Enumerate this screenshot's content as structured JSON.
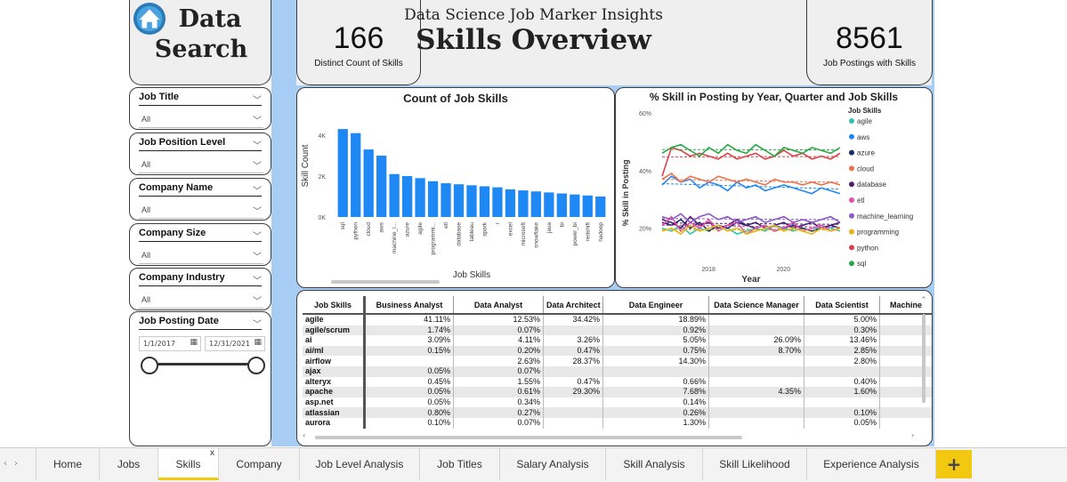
{
  "logo": {
    "line1": "Data",
    "line2": "Search",
    "icon": "home-icon"
  },
  "header": {
    "subtitle": "Data Science Job Marker Insights",
    "title": "Skills Overview"
  },
  "kpis": [
    {
      "value": "166",
      "label": "Distinct Count of Skills"
    },
    {
      "value": "8561",
      "label": "Job Postings with Skills"
    }
  ],
  "filters": [
    {
      "title": "Job Title",
      "value": "All"
    },
    {
      "title": "Job Position Level",
      "value": "All"
    },
    {
      "title": "Company Name",
      "value": "All"
    },
    {
      "title": "Company Size",
      "value": "All"
    },
    {
      "title": "Company Industry",
      "value": "All"
    }
  ],
  "date_filter": {
    "title": "Job Posting Date",
    "start": "1/1/2017",
    "end": "12/31/2021",
    "range": [
      0,
      1
    ]
  },
  "bar_panel_title": "Count of Job Skills",
  "line_panel_title": "% Skill in Posting by Year, Quarter and Job Skills",
  "chart_data": [
    {
      "type": "bar",
      "title": "Count of Job Skills",
      "xlabel": "Job Skills",
      "ylabel": "Skill Count",
      "ylim": [
        0,
        5000
      ],
      "yticks": [
        "0K",
        "2K",
        "4K"
      ],
      "categories": [
        "sql",
        "python",
        "cloud",
        "aws",
        "machine_l...",
        "azure",
        "agile",
        "programmi...",
        "etl",
        "database",
        "tableau",
        "spark",
        "r",
        "excel",
        "microsoft",
        "snowflake",
        "java",
        "bi",
        "power_bi",
        "redshift",
        "hadoop"
      ],
      "values": [
        4300,
        4100,
        3300,
        3000,
        2100,
        2000,
        1900,
        1750,
        1650,
        1600,
        1550,
        1500,
        1450,
        1350,
        1300,
        1250,
        1200,
        1150,
        1100,
        1050,
        1000
      ],
      "color": "#1e88f5"
    },
    {
      "type": "line",
      "title": "% Skill in Posting by Year, Quarter and Job Skills",
      "xlabel": "Year",
      "ylabel": "% Skill in Posting",
      "xticks": [
        "2018",
        "2020"
      ],
      "yticks": [
        "20%",
        "40%",
        "60%"
      ],
      "ylim": [
        10,
        60
      ],
      "legend_title": "Job Skills",
      "legend_position": "right",
      "x": [
        "2017Q1",
        "2017Q2",
        "2017Q3",
        "2017Q4",
        "2018Q1",
        "2018Q2",
        "2018Q3",
        "2018Q4",
        "2019Q1",
        "2019Q2",
        "2019Q3",
        "2019Q4",
        "2020Q1",
        "2020Q2",
        "2020Q3",
        "2020Q4",
        "2021Q1",
        "2021Q2",
        "2021Q3",
        "2021Q4"
      ],
      "series": [
        {
          "name": "agile",
          "color": "#2ec4b6",
          "values": [
            20,
            19,
            21,
            18,
            20,
            19,
            21,
            20,
            18,
            19,
            20,
            19,
            21,
            20,
            19,
            20,
            19,
            21,
            20,
            19
          ]
        },
        {
          "name": "aws",
          "color": "#1e88f5",
          "values": [
            35,
            38,
            36,
            37,
            34,
            36,
            35,
            33,
            36,
            34,
            35,
            33,
            34,
            35,
            34,
            33,
            32,
            34,
            33,
            32
          ]
        },
        {
          "name": "azure",
          "color": "#1a2a6c",
          "values": [
            22,
            21,
            23,
            20,
            22,
            19,
            21,
            20,
            22,
            21,
            20,
            21,
            19,
            20,
            21,
            20,
            19,
            20,
            21,
            20
          ]
        },
        {
          "name": "cloud",
          "color": "#e8744c",
          "values": [
            37,
            39,
            36,
            38,
            37,
            36,
            38,
            37,
            36,
            37,
            36,
            35,
            37,
            36,
            36,
            35,
            36,
            35,
            36,
            35
          ]
        },
        {
          "name": "database",
          "color": "#4b1f6f",
          "values": [
            23,
            22,
            20,
            24,
            21,
            22,
            20,
            21,
            23,
            21,
            22,
            20,
            21,
            22,
            20,
            21,
            22,
            20,
            21,
            22
          ]
        },
        {
          "name": "etl",
          "color": "#e64fa8",
          "values": [
            21,
            24,
            19,
            22,
            20,
            23,
            19,
            21,
            22,
            18,
            20,
            21,
            19,
            20,
            22,
            19,
            20,
            21,
            19,
            20
          ]
        },
        {
          "name": "machine_learning",
          "color": "#8a5cc7",
          "values": [
            24,
            23,
            25,
            22,
            24,
            25,
            23,
            24,
            22,
            23,
            24,
            22,
            23,
            24,
            22,
            23,
            22,
            23,
            24,
            22
          ]
        },
        {
          "name": "programming",
          "color": "#e7b416",
          "values": [
            19,
            20,
            18,
            21,
            19,
            20,
            21,
            19,
            20,
            18,
            19,
            20,
            21,
            19,
            20,
            19,
            18,
            20,
            19,
            20
          ]
        },
        {
          "name": "python",
          "color": "#d9434b",
          "values": [
            38,
            48,
            47,
            45,
            46,
            45,
            44,
            46,
            44,
            45,
            46,
            44,
            45,
            47,
            45,
            46,
            44,
            45,
            44,
            46
          ]
        },
        {
          "name": "sql",
          "color": "#2aa845",
          "values": [
            46,
            48,
            49,
            47,
            45,
            48,
            46,
            49,
            47,
            46,
            49,
            47,
            45,
            48,
            47,
            46,
            48,
            47,
            46,
            48
          ]
        }
      ]
    }
  ],
  "matrix": {
    "columns": [
      "Job Skills",
      "Business Analyst",
      "Data Analyst",
      "Data Architect",
      "Data Engineer",
      "Data Science Manager",
      "Data Scientist",
      "Machine"
    ],
    "rows": [
      [
        "agile",
        "41.11%",
        "12.53%",
        "34.42%",
        "18.89%",
        "",
        "5.00%"
      ],
      [
        "agile/scrum",
        "1.74%",
        "0.07%",
        "",
        "0.92%",
        "",
        "0.30%"
      ],
      [
        "ai",
        "3.09%",
        "4.11%",
        "3.26%",
        "5.05%",
        "26.09%",
        "13.46%"
      ],
      [
        "ai/ml",
        "0.15%",
        "0.20%",
        "0.47%",
        "0.75%",
        "8.70%",
        "2.85%"
      ],
      [
        "airflow",
        "",
        "2.63%",
        "28.37%",
        "14.30%",
        "",
        "2.80%"
      ],
      [
        "ajax",
        "0.05%",
        "0.07%",
        "",
        "",
        "",
        ""
      ],
      [
        "alteryx",
        "0.45%",
        "1.55%",
        "0.47%",
        "0.66%",
        "",
        "0.40%"
      ],
      [
        "apache",
        "0.05%",
        "0.61%",
        "29.30%",
        "7.68%",
        "4.35%",
        "1.60%"
      ],
      [
        "asp.net",
        "0.05%",
        "0.34%",
        "",
        "0.14%",
        "",
        ""
      ],
      [
        "atlassian",
        "0.80%",
        "0.27%",
        "",
        "0.26%",
        "",
        "0.10%"
      ],
      [
        "aurora",
        "0.10%",
        "0.07%",
        "",
        "1.30%",
        "",
        "0.05%"
      ]
    ]
  },
  "tabs": [
    {
      "label": "Home"
    },
    {
      "label": "Jobs"
    },
    {
      "label": "Skills",
      "active": true,
      "close": "x"
    },
    {
      "label": "Company"
    },
    {
      "label": "Job Level Analysis"
    },
    {
      "label": "Job Titles"
    },
    {
      "label": "Salary Analysis"
    },
    {
      "label": "Skill Analysis"
    },
    {
      "label": "Skill Likelihood"
    },
    {
      "label": "Experience Analysis"
    }
  ],
  "add_tab": "+",
  "nav": {
    "prev": "‹",
    "next": "›"
  }
}
